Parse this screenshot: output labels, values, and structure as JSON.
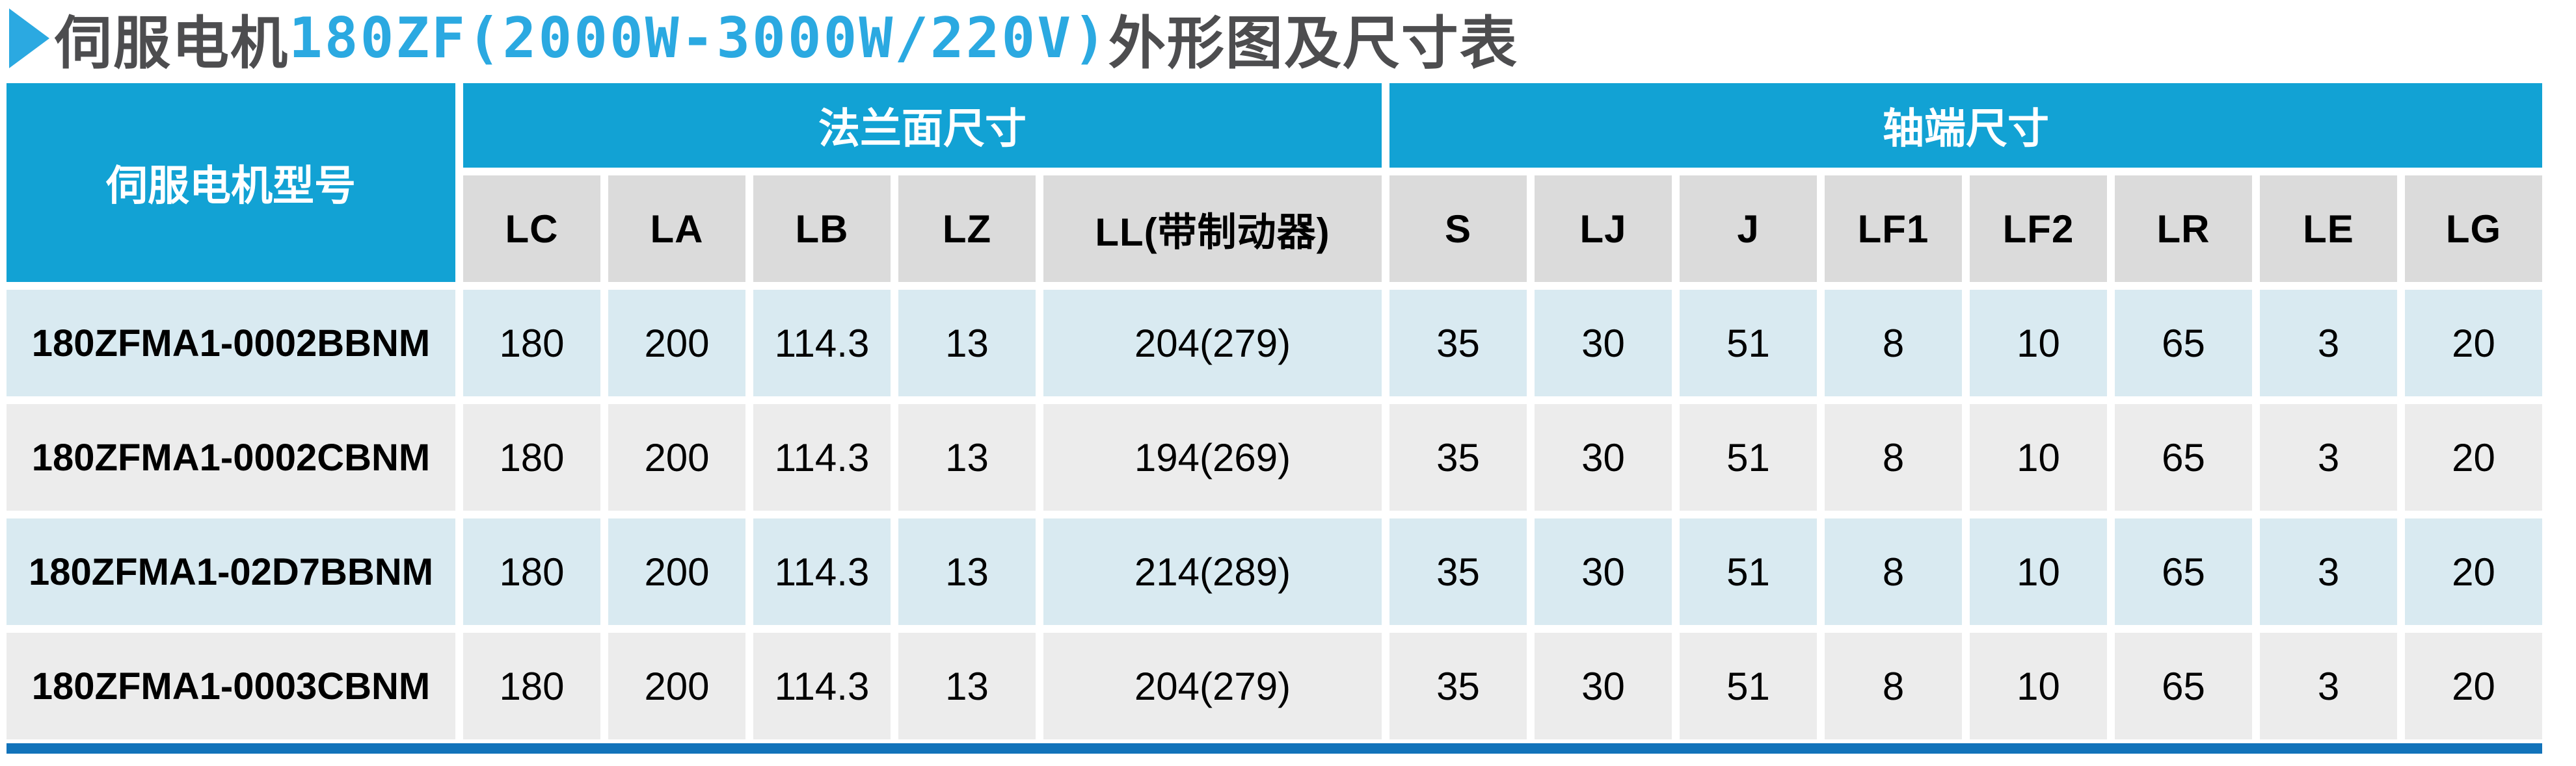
{
  "title": {
    "prefix": "伺服电机",
    "model_spec": "180ZF(2000W-3000W/220V)",
    "suffix": "外形图及尺寸表"
  },
  "colors": {
    "header_blue": "#12A2D4",
    "title_blue": "#2BA9E1",
    "title_dark": "#4D4D4F",
    "subheader_gray": "#DBDBDB",
    "row_light_blue": "#D9EAF1",
    "row_light_gray": "#ECECEC",
    "bottom_bar_blue": "#1273BA"
  },
  "table": {
    "model_header": "伺服电机型号",
    "groups": [
      {
        "label": "法兰面尺寸",
        "span": 5
      },
      {
        "label": "轴端尺寸",
        "span": 8
      }
    ],
    "columns": [
      "LC",
      "LA",
      "LB",
      "LZ",
      "LL(带制动器)",
      "S",
      "LJ",
      "J",
      "LF1",
      "LF2",
      "LR",
      "LE",
      "LG"
    ],
    "rows": [
      {
        "cells": [
          "180ZFMA1-0002BBNM",
          "180",
          "200",
          "114.3",
          "13",
          "204(279)",
          "35",
          "30",
          "51",
          "8",
          "10",
          "65",
          "3",
          "20"
        ]
      },
      {
        "cells": [
          "180ZFMA1-0002CBNM",
          "180",
          "200",
          "114.3",
          "13",
          "194(269)",
          "35",
          "30",
          "51",
          "8",
          "10",
          "65",
          "3",
          "20"
        ]
      },
      {
        "cells": [
          "180ZFMA1-02D7BBNM",
          "180",
          "200",
          "114.3",
          "13",
          "214(289)",
          "35",
          "30",
          "51",
          "8",
          "10",
          "65",
          "3",
          "20"
        ]
      },
      {
        "cells": [
          "180ZFMA1-0003CBNM",
          "180",
          "200",
          "114.3",
          "13",
          "204(279)",
          "35",
          "30",
          "51",
          "8",
          "10",
          "65",
          "3",
          "20"
        ]
      }
    ]
  }
}
